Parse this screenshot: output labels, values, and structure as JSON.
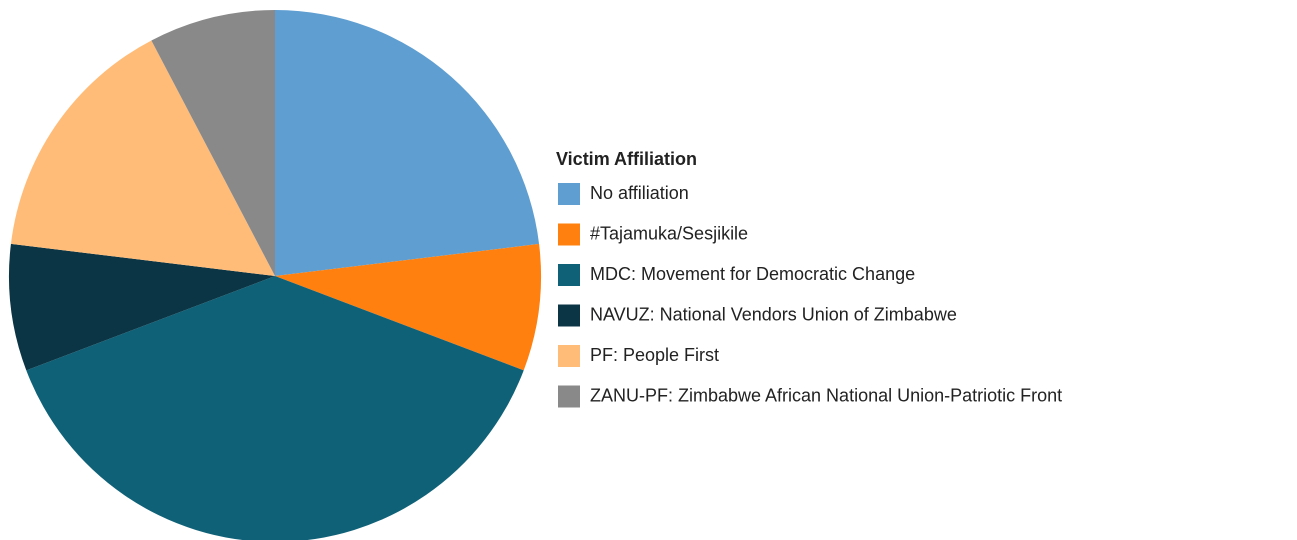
{
  "chart_data": {
    "type": "pie",
    "legend_title": "Victim Affiliation",
    "categories": [
      "No affiliation",
      "#Tajamuka/Sesjikile",
      "MDC: Movement for Democratic Change",
      "NAVUZ: National Vendors Union of Zimbabwe",
      "PF: People First",
      "ZANU-PF: Zimbabwe African National Union-Patriotic Front"
    ],
    "values": [
      23.1,
      7.7,
      38.5,
      7.7,
      15.4,
      7.7
    ],
    "colors": [
      "#5f9ed1",
      "#ff800e",
      "#0f6178",
      "#0b3544",
      "#ffbc79",
      "#898989"
    ],
    "legend": "right"
  }
}
